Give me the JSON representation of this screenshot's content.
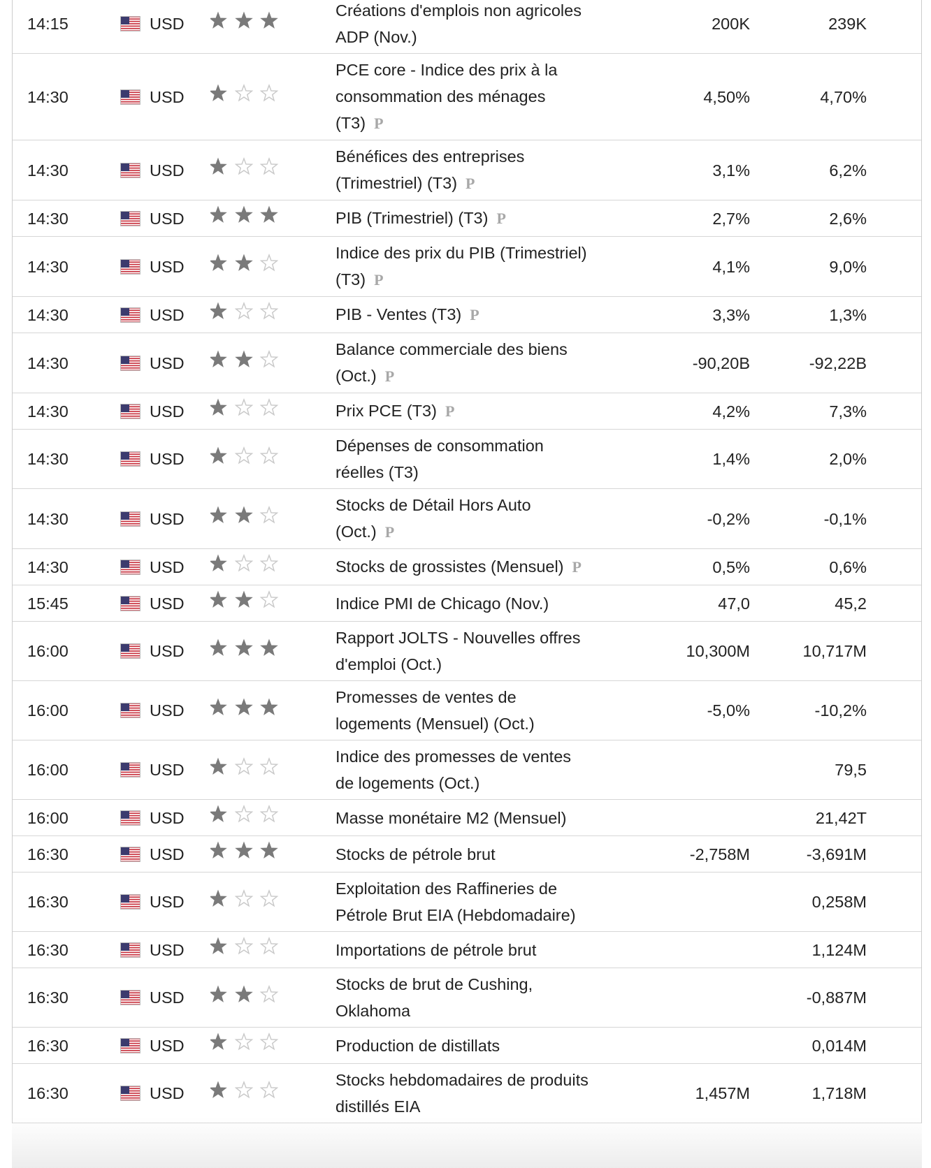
{
  "table": {
    "rows": [
      {
        "time": "14:15",
        "currency": "USD",
        "importance": 3,
        "event": "Créations d'emplois non agricoles ADP (Nov.)",
        "forecast": "200K",
        "previous": "239K"
      },
      {
        "time": "14:30",
        "currency": "USD",
        "importance": 1,
        "event": "PCE core - Indice des prix à la consommation des ménages (T3)",
        "tag": "P",
        "forecast": "4,50%",
        "previous": "4,70%"
      },
      {
        "time": "14:30",
        "currency": "USD",
        "importance": 1,
        "event": "Bénéfices des entreprises (Trimestriel) (T3)",
        "tag": "P",
        "forecast": "3,1%",
        "previous": "6,2%"
      },
      {
        "time": "14:30",
        "currency": "USD",
        "importance": 3,
        "event": "PIB (Trimestriel) (T3)",
        "tag": "P",
        "forecast": "2,7%",
        "previous": "2,6%"
      },
      {
        "time": "14:30",
        "currency": "USD",
        "importance": 2,
        "event": "Indice des prix du PIB (Trimestriel) (T3)",
        "tag": "P",
        "forecast": "4,1%",
        "previous": "9,0%"
      },
      {
        "time": "14:30",
        "currency": "USD",
        "importance": 1,
        "event": "PIB - Ventes (T3)",
        "tag": "P",
        "forecast": "3,3%",
        "previous": "1,3%"
      },
      {
        "time": "14:30",
        "currency": "USD",
        "importance": 2,
        "event": "Balance commerciale des biens (Oct.)",
        "tag": "P",
        "forecast": "-90,20B",
        "previous": "-92,22B"
      },
      {
        "time": "14:30",
        "currency": "USD",
        "importance": 1,
        "event": "Prix PCE (T3)",
        "tag": "P",
        "forecast": "4,2%",
        "previous": "7,3%"
      },
      {
        "time": "14:30",
        "currency": "USD",
        "importance": 1,
        "event": "Dépenses de consommation réelles (T3)",
        "forecast": "1,4%",
        "previous": "2,0%"
      },
      {
        "time": "14:30",
        "currency": "USD",
        "importance": 2,
        "event": "Stocks de Détail Hors Auto (Oct.)",
        "tag": "P",
        "forecast": "-0,2%",
        "previous": "-0,1%"
      },
      {
        "time": "14:30",
        "currency": "USD",
        "importance": 1,
        "event": "Stocks de grossistes (Mensuel)",
        "tag": "P",
        "forecast": "0,5%",
        "previous": "0,6%"
      },
      {
        "time": "15:45",
        "currency": "USD",
        "importance": 2,
        "event": "Indice PMI de Chicago (Nov.)",
        "forecast": "47,0",
        "previous": "45,2"
      },
      {
        "time": "16:00",
        "currency": "USD",
        "importance": 3,
        "event": "Rapport JOLTS - Nouvelles offres d'emploi (Oct.)",
        "forecast": "10,300M",
        "previous": "10,717M"
      },
      {
        "time": "16:00",
        "currency": "USD",
        "importance": 3,
        "event": "Promesses de ventes de logements (Mensuel) (Oct.)",
        "forecast": "-5,0%",
        "previous": "-10,2%"
      },
      {
        "time": "16:00",
        "currency": "USD",
        "importance": 1,
        "event": "Indice des promesses de ventes de logements (Oct.)",
        "previous": "79,5"
      },
      {
        "time": "16:00",
        "currency": "USD",
        "importance": 1,
        "event": "Masse monétaire M2 (Mensuel)",
        "previous": "21,42T"
      },
      {
        "time": "16:30",
        "currency": "USD",
        "importance": 3,
        "event": "Stocks de pétrole brut",
        "forecast": "-2,758M",
        "previous": "-3,691M"
      },
      {
        "time": "16:30",
        "currency": "USD",
        "importance": 1,
        "event": "Exploitation des Raffineries de Pétrole Brut EIA (Hebdomadaire)",
        "previous": "0,258M"
      },
      {
        "time": "16:30",
        "currency": "USD",
        "importance": 1,
        "event": "Importations de pétrole brut",
        "previous": "1,124M"
      },
      {
        "time": "16:30",
        "currency": "USD",
        "importance": 2,
        "event": "Stocks de brut de Cushing, Oklahoma",
        "previous": "-0,887M"
      },
      {
        "time": "16:30",
        "currency": "USD",
        "importance": 1,
        "event": "Production de distillats",
        "previous": "0,014M"
      },
      {
        "time": "16:30",
        "currency": "USD",
        "importance": 1,
        "event": "Stocks hebdomadaires de produits distillés EIA",
        "forecast": "1,457M",
        "previous": "1,718M"
      }
    ]
  }
}
